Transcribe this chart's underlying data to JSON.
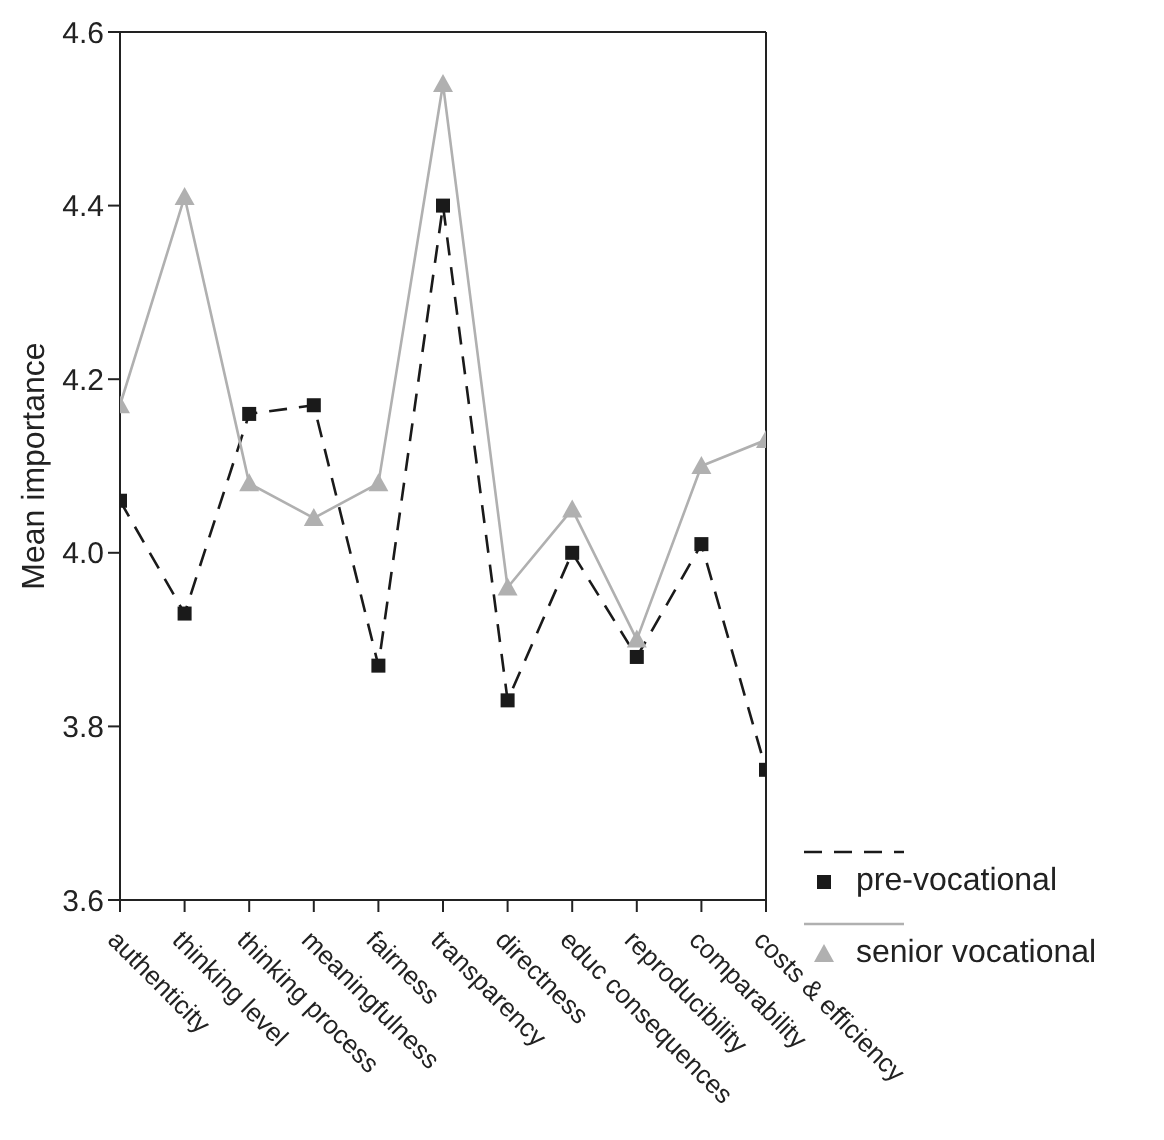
{
  "chart_data": {
    "type": "line",
    "ylabel": "Mean importance",
    "categories": [
      "authenticity",
      "thinking level",
      "thinking process",
      "meaningfulness",
      "fairness",
      "transparency",
      "directness",
      "educ consequences",
      "reproducibility",
      "comparability",
      "costs & efficiency"
    ],
    "series": [
      {
        "name": "pre-vocational",
        "color": "#1a1a1a",
        "marker": "square",
        "line_style": "dashed",
        "values": [
          4.06,
          3.93,
          4.16,
          4.17,
          3.87,
          4.4,
          3.83,
          4.0,
          3.88,
          4.01,
          3.75
        ]
      },
      {
        "name": "senior vocational",
        "color": "#b0b0b0",
        "marker": "triangle",
        "line_style": "solid",
        "values": [
          4.17,
          4.41,
          4.08,
          4.04,
          4.08,
          4.54,
          3.96,
          4.05,
          3.9,
          4.1,
          4.13
        ]
      }
    ],
    "ylim": [
      3.6,
      4.6
    ],
    "yticks": [
      3.6,
      3.8,
      {
        "value": 4.0,
        "label": "4.0"
      },
      4.2,
      4.4,
      4.6
    ],
    "grid": false,
    "legend": "right"
  }
}
